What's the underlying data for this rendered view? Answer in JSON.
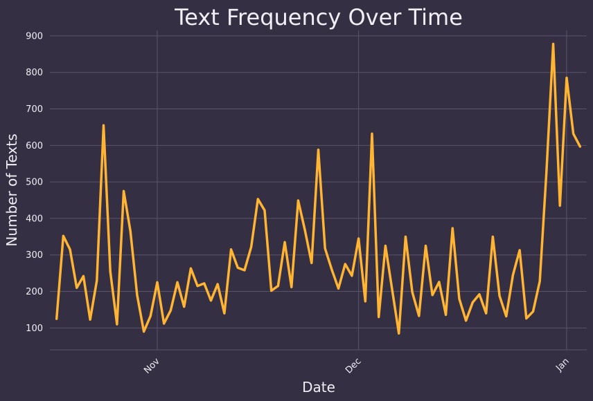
{
  "chart_data": {
    "type": "line",
    "title": "Text Frequency Over Time",
    "xlabel": "Date",
    "ylabel": "Number of Texts",
    "x_range": [
      "2024-10-16",
      "2025-01-04"
    ],
    "ylim": [
      40,
      915
    ],
    "y_ticks": [
      100,
      200,
      300,
      400,
      500,
      600,
      700,
      800,
      900
    ],
    "x_ticks": [
      {
        "date": "2024-11-01",
        "label": "Nov"
      },
      {
        "date": "2024-12-01",
        "label": "Dec"
      },
      {
        "date": "2025-01-01",
        "label": "Jan"
      }
    ],
    "grid": true,
    "series": [
      {
        "color": "#ffb533",
        "points": [
          [
            "2024-10-17",
            125
          ],
          [
            "2024-10-18",
            352
          ],
          [
            "2024-10-19",
            315
          ],
          [
            "2024-10-20",
            210
          ],
          [
            "2024-10-21",
            242
          ],
          [
            "2024-10-22",
            123
          ],
          [
            "2024-10-23",
            230
          ],
          [
            "2024-10-24",
            655
          ],
          [
            "2024-10-25",
            255
          ],
          [
            "2024-10-26",
            110
          ],
          [
            "2024-10-27",
            475
          ],
          [
            "2024-10-28",
            365
          ],
          [
            "2024-10-29",
            190
          ],
          [
            "2024-10-30",
            90
          ],
          [
            "2024-10-31",
            133
          ],
          [
            "2024-11-01",
            225
          ],
          [
            "2024-11-02",
            112
          ],
          [
            "2024-11-03",
            148
          ],
          [
            "2024-11-04",
            225
          ],
          [
            "2024-11-05",
            158
          ],
          [
            "2024-11-06",
            263
          ],
          [
            "2024-11-07",
            215
          ],
          [
            "2024-11-08",
            222
          ],
          [
            "2024-11-09",
            175
          ],
          [
            "2024-11-10",
            220
          ],
          [
            "2024-11-11",
            140
          ],
          [
            "2024-11-12",
            315
          ],
          [
            "2024-11-13",
            265
          ],
          [
            "2024-11-14",
            258
          ],
          [
            "2024-11-15",
            322
          ],
          [
            "2024-11-16",
            453
          ],
          [
            "2024-11-17",
            422
          ],
          [
            "2024-11-18",
            202
          ],
          [
            "2024-11-19",
            215
          ],
          [
            "2024-11-20",
            335
          ],
          [
            "2024-11-21",
            212
          ],
          [
            "2024-11-22",
            449
          ],
          [
            "2024-11-23",
            368
          ],
          [
            "2024-11-24",
            278
          ],
          [
            "2024-11-25",
            588
          ],
          [
            "2024-11-26",
            318
          ],
          [
            "2024-11-27",
            260
          ],
          [
            "2024-11-28",
            208
          ],
          [
            "2024-11-29",
            275
          ],
          [
            "2024-11-30",
            243
          ],
          [
            "2024-12-01",
            345
          ],
          [
            "2024-12-02",
            173
          ],
          [
            "2024-12-03",
            632
          ],
          [
            "2024-12-04",
            130
          ],
          [
            "2024-12-05",
            325
          ],
          [
            "2024-12-06",
            205
          ],
          [
            "2024-12-07",
            85
          ],
          [
            "2024-12-08",
            350
          ],
          [
            "2024-12-09",
            198
          ],
          [
            "2024-12-10",
            133
          ],
          [
            "2024-12-11",
            325
          ],
          [
            "2024-12-12",
            190
          ],
          [
            "2024-12-13",
            226
          ],
          [
            "2024-12-14",
            136
          ],
          [
            "2024-12-15",
            373
          ],
          [
            "2024-12-16",
            180
          ],
          [
            "2024-12-17",
            120
          ],
          [
            "2024-12-18",
            170
          ],
          [
            "2024-12-19",
            192
          ],
          [
            "2024-12-20",
            140
          ],
          [
            "2024-12-21",
            350
          ],
          [
            "2024-12-22",
            188
          ],
          [
            "2024-12-23",
            132
          ],
          [
            "2024-12-24",
            245
          ],
          [
            "2024-12-25",
            313
          ],
          [
            "2024-12-26",
            126
          ],
          [
            "2024-12-27",
            145
          ],
          [
            "2024-12-28",
            228
          ],
          [
            "2024-12-29",
            530
          ],
          [
            "2024-12-30",
            878
          ],
          [
            "2024-12-31",
            435
          ],
          [
            "2025-01-01",
            785
          ],
          [
            "2025-01-02",
            632
          ],
          [
            "2025-01-03",
            597
          ]
        ]
      }
    ]
  }
}
